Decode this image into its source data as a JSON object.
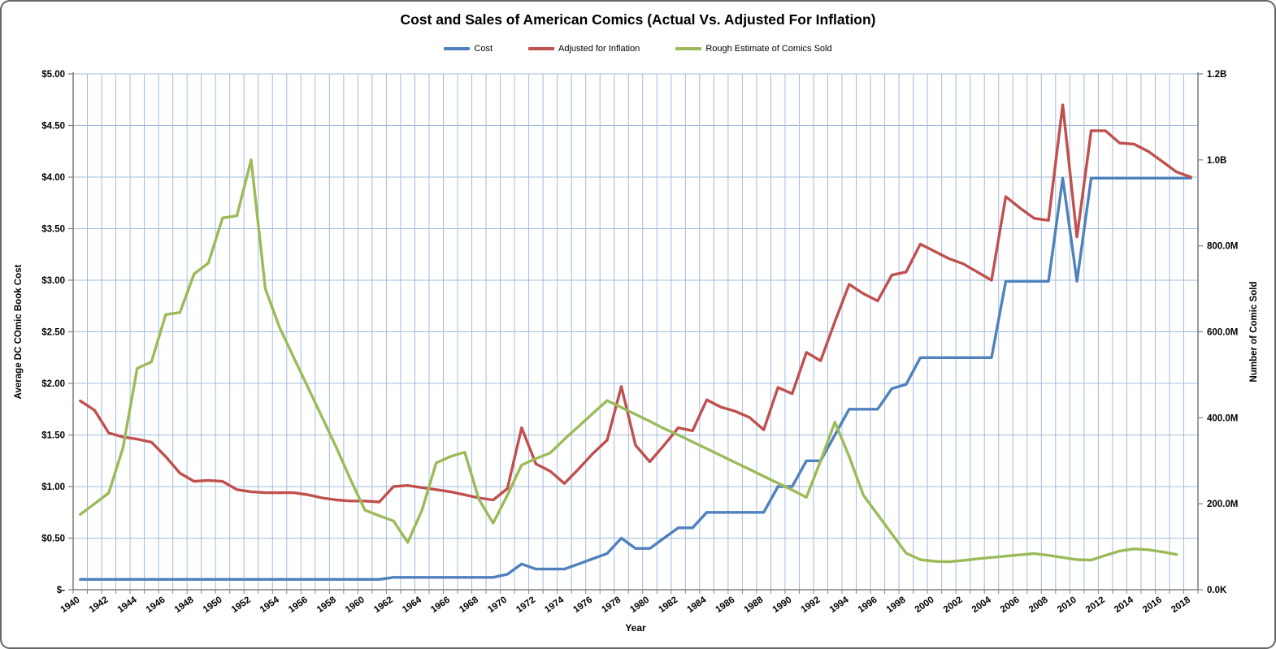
{
  "title": "Cost and Sales of American Comics (Actual Vs. Adjusted For Inflation)",
  "legend": {
    "items": [
      {
        "label": "Cost",
        "color": "#4F81BD"
      },
      {
        "label": "Adjusted for Inflation",
        "color": "#C0504D"
      },
      {
        "label": "Rough Estimate  of Comics Sold",
        "color": "#9BBB59"
      }
    ]
  },
  "colors": {
    "gridline": "#A3BCDC",
    "axis": "#808080",
    "tick_text": "#000000"
  },
  "chart_data": {
    "type": "line",
    "title": "Cost and Sales of American Comics (Actual Vs. Adjusted For Inflation)",
    "xlabel": "Year",
    "ylabel_left": "Average DC COmic Book Cost",
    "ylabel_right": "Number of Comic Sold",
    "grid": true,
    "legend_position": "top",
    "left_axis": {
      "min": 0,
      "max": 5,
      "step": 0.5,
      "tick_labels": [
        "$5.00",
        "$4.50",
        "$4.00",
        "$3.50",
        "$3.00",
        "$2.50",
        "$2.00",
        "$1.50",
        "$1.00",
        "$0.50",
        "$-"
      ],
      "tick_values": [
        5,
        4.5,
        4,
        3.5,
        3,
        2.5,
        2,
        1.5,
        1,
        0.5,
        0
      ]
    },
    "right_axis": {
      "min": 0,
      "max": 1200,
      "tick_labels": [
        "1.2B",
        "1.0B",
        "800.0M",
        "600.0M",
        "400.0M",
        "200.0M",
        "0.0K"
      ],
      "tick_values": [
        1200,
        1000,
        800,
        600,
        400,
        200,
        0
      ]
    },
    "x_tick_labels": [
      "1940",
      "1942",
      "1944",
      "1946",
      "1948",
      "1950",
      "1952",
      "1954",
      "1956",
      "1958",
      "1960",
      "1962",
      "1964",
      "1966",
      "1968",
      "1970",
      "1972",
      "1974",
      "1976",
      "1978",
      "1980",
      "1982",
      "1984",
      "1986",
      "1988",
      "1990",
      "1992",
      "1994",
      "1996",
      "1998",
      "2000",
      "2002",
      "2004",
      "2006",
      "2008",
      "2010",
      "2012",
      "2014",
      "2016",
      "2018"
    ],
    "years": [
      1940,
      1941,
      1942,
      1943,
      1944,
      1945,
      1946,
      1947,
      1948,
      1949,
      1950,
      1951,
      1952,
      1953,
      1954,
      1955,
      1956,
      1957,
      1958,
      1959,
      1960,
      1961,
      1962,
      1963,
      1964,
      1965,
      1966,
      1967,
      1968,
      1969,
      1970,
      1971,
      1972,
      1973,
      1974,
      1975,
      1976,
      1977,
      1978,
      1979,
      1980,
      1981,
      1982,
      1983,
      1984,
      1985,
      1986,
      1987,
      1988,
      1989,
      1990,
      1991,
      1992,
      1993,
      1994,
      1995,
      1996,
      1997,
      1998,
      1999,
      2000,
      2001,
      2002,
      2003,
      2004,
      2005,
      2006,
      2007,
      2008,
      2009,
      2010,
      2011,
      2012,
      2013,
      2014,
      2015,
      2016,
      2017,
      2018
    ],
    "series": [
      {
        "name": "Cost",
        "axis": "left",
        "color": "#4F81BD",
        "values": [
          0.1,
          0.1,
          0.1,
          0.1,
          0.1,
          0.1,
          0.1,
          0.1,
          0.1,
          0.1,
          0.1,
          0.1,
          0.1,
          0.1,
          0.1,
          0.1,
          0.1,
          0.1,
          0.1,
          0.1,
          0.1,
          0.1,
          0.12,
          0.12,
          0.12,
          0.12,
          0.12,
          0.12,
          0.12,
          0.12,
          0.15,
          0.25,
          0.2,
          0.2,
          0.2,
          0.25,
          0.3,
          0.35,
          0.5,
          0.4,
          0.4,
          0.5,
          0.6,
          0.6,
          0.75,
          0.75,
          0.75,
          0.75,
          0.75,
          1.0,
          1.0,
          1.25,
          1.25,
          1.5,
          1.75,
          1.75,
          1.75,
          1.95,
          1.99,
          2.25,
          2.25,
          2.25,
          2.25,
          2.25,
          2.25,
          2.99,
          2.99,
          2.99,
          2.99,
          3.99,
          2.99,
          3.99,
          3.99,
          3.99,
          3.99,
          3.99,
          3.99,
          3.99,
          3.99
        ]
      },
      {
        "name": "Adjusted for Inflation",
        "axis": "left",
        "color": "#C0504D",
        "values": [
          1.83,
          1.74,
          1.52,
          1.48,
          1.46,
          1.43,
          1.29,
          1.13,
          1.05,
          1.06,
          1.05,
          0.97,
          0.95,
          0.94,
          0.94,
          0.94,
          0.92,
          0.89,
          0.87,
          0.86,
          0.86,
          0.85,
          1.0,
          1.01,
          0.99,
          0.97,
          0.95,
          0.92,
          0.89,
          0.87,
          0.98,
          1.57,
          1.22,
          1.15,
          1.03,
          1.17,
          1.32,
          1.45,
          1.97,
          1.4,
          1.24,
          1.4,
          1.57,
          1.54,
          1.84,
          1.77,
          1.73,
          1.67,
          1.55,
          1.96,
          1.9,
          2.3,
          2.22,
          2.6,
          2.96,
          2.87,
          2.8,
          3.05,
          3.08,
          3.35,
          3.28,
          3.21,
          3.16,
          3.08,
          3.0,
          3.81,
          3.7,
          3.6,
          3.58,
          4.7,
          3.42,
          4.45,
          4.45,
          4.33,
          4.32,
          4.25,
          4.15,
          4.05,
          4.0
        ]
      },
      {
        "name": "Rough Estimate  of Comics Sold",
        "axis": "right",
        "color": "#9BBB59",
        "values": [
          175,
          200,
          225,
          330,
          515,
          530,
          640,
          645,
          735,
          760,
          865,
          870,
          1000,
          700,
          610,
          540,
          470,
          400,
          330,
          255,
          185,
          172,
          160,
          110,
          185,
          295,
          310,
          320,
          210,
          155,
          220,
          290,
          305,
          318,
          350,
          380,
          410,
          440,
          424,
          408,
          392,
          375,
          360,
          344,
          328,
          312,
          296,
          280,
          264,
          248,
          232,
          215,
          300,
          390,
          310,
          220,
          175,
          130,
          85,
          70,
          66,
          65,
          68,
          72,
          75,
          78,
          81,
          84,
          80,
          75,
          70,
          69,
          80,
          90,
          95,
          93,
          88,
          82,
          null
        ]
      }
    ]
  }
}
